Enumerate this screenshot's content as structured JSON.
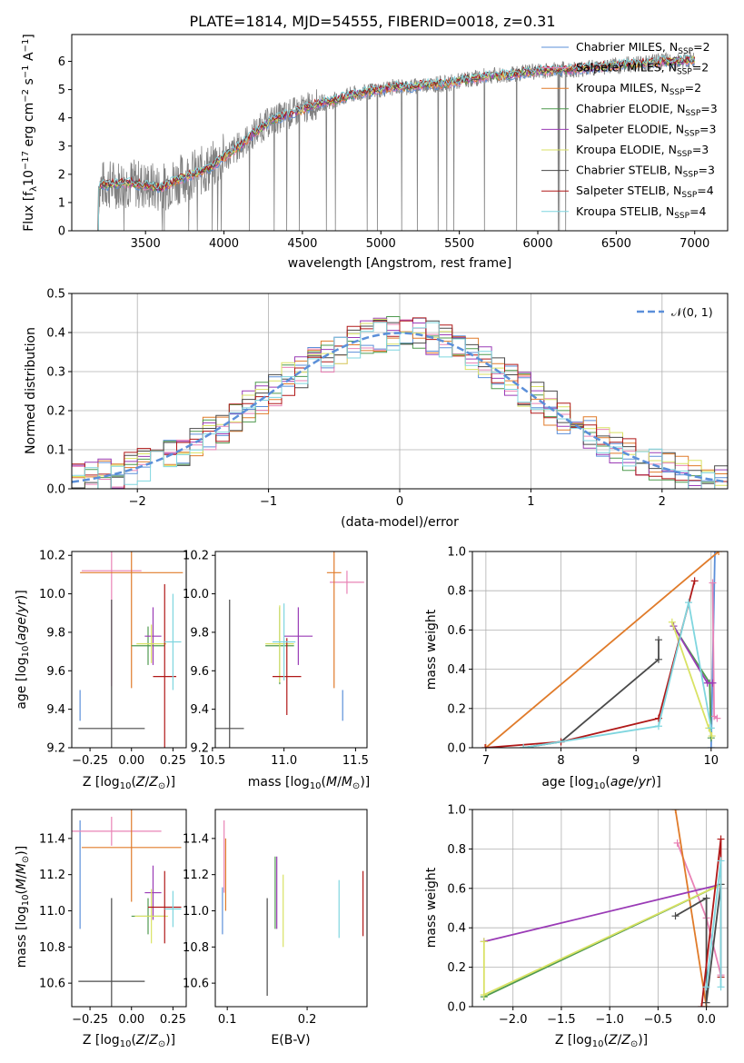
{
  "figure": {
    "title": "PLATE=1814, MJD=54555, FIBERID=0018, z=0.31"
  },
  "colors": {
    "c0": "#5b8fd9",
    "c1": "#e983b6",
    "c2": "#e07b2a",
    "c3": "#4f9a4f",
    "c4": "#9a3bb6",
    "c5": "#d9e264",
    "c6": "#4a4a4a",
    "c7": "#b01818",
    "c8": "#7fd6df",
    "data": "#808080",
    "gauss": "#5b8fd9"
  },
  "legend_labels": [
    "Chabrier MILES, N",
    "Salpeter MILES, N",
    "Kroupa MILES, N",
    "Chabrier ELODIE, N",
    "Salpeter ELODIE, N",
    "Kroupa ELODIE, N",
    "Chabrier STELIB, N",
    "Salpeter STELIB, N",
    "Kroupa STELIB, N"
  ],
  "legend_sub": "SSP",
  "legend_eq": [
    "=2",
    "=2",
    "=2",
    "=3",
    "=3",
    "=3",
    "=3",
    "=4",
    "=4"
  ],
  "chart_data": [
    {
      "id": "spectrum",
      "type": "line",
      "xlabel": "wavelength [Angstrom, rest frame]",
      "ylabel": "Flux [f",
      "xlim": [
        3030,
        7210
      ],
      "ylim": [
        0,
        6.95
      ],
      "xticks": [
        3500,
        4000,
        4500,
        5000,
        5500,
        6000,
        6500,
        7000
      ],
      "yticks": [
        0,
        1,
        2,
        3,
        4,
        5,
        6
      ],
      "grid": false,
      "legend": "top-right",
      "continuum_x": [
        3200,
        3300,
        3400,
        3500,
        3600,
        3700,
        3800,
        3900,
        4000,
        4100,
        4200,
        4300,
        4400,
        4500,
        4600,
        4700,
        4800,
        4900,
        5000,
        5100,
        5200,
        5300,
        5400,
        5500,
        5600,
        5700,
        5800,
        5900,
        6000,
        6100,
        6200,
        6300,
        6400,
        6500,
        6600,
        6700,
        6800,
        6900,
        7000
      ],
      "continuum_y": [
        1.6,
        1.65,
        1.7,
        1.6,
        1.5,
        1.8,
        2.0,
        2.2,
        2.6,
        3.0,
        3.5,
        3.9,
        4.1,
        4.3,
        4.5,
        4.6,
        4.8,
        4.9,
        5.0,
        5.1,
        5.1,
        5.2,
        5.2,
        5.3,
        5.4,
        5.5,
        5.5,
        5.6,
        5.65,
        5.7,
        5.7,
        5.75,
        5.8,
        5.85,
        5.9,
        5.95,
        6.0,
        6.0,
        6.05
      ]
    },
    {
      "id": "residuals",
      "type": "line",
      "xlabel": "(data-model)/error",
      "ylabel": "Normed distribution",
      "xlim": [
        -2.5,
        2.5
      ],
      "ylim": [
        0,
        0.5
      ],
      "xticks": [
        -2,
        -1,
        0,
        1,
        2
      ],
      "yticks": [
        0.0,
        0.1,
        0.2,
        0.3,
        0.4,
        0.5
      ],
      "grid": true,
      "legend_label": "𝒩(0, 1)",
      "bin_width": 0.1
    },
    {
      "id": "age-vs-Z",
      "type": "scatter",
      "xlabel": "Z [log",
      "ylabel": "age  [log",
      "xlim": [
        -0.36,
        0.33
      ],
      "ylim": [
        9.2,
        10.22
      ],
      "xticks": [
        -0.25,
        0.0,
        0.25
      ],
      "yticks": [
        9.2,
        9.4,
        9.6,
        9.8,
        10.0,
        10.2
      ],
      "points": [
        {
          "color": "c0",
          "x": -0.31,
          "y": 9.42,
          "xerr": 0.0,
          "yerr": 0.08
        },
        {
          "color": "c1",
          "x": -0.12,
          "y": 10.12,
          "xerr": 0.18,
          "yerr": 0.6
        },
        {
          "color": "c2",
          "x": 0.0,
          "y": 10.11,
          "xerr": 0.31,
          "yerr": 0.6
        },
        {
          "color": "c3",
          "x": 0.1,
          "y": 9.73,
          "xerr": 0.1,
          "yerr": 0.1
        },
        {
          "color": "c4",
          "x": 0.13,
          "y": 9.78,
          "xerr": 0.05,
          "yerr": 0.15
        },
        {
          "color": "c5",
          "x": 0.12,
          "y": 9.74,
          "xerr": 0.09,
          "yerr": 0.1
        },
        {
          "color": "c6",
          "x": -0.12,
          "y": 9.3,
          "xerr": 0.2,
          "yerr": 0.67
        },
        {
          "color": "c7",
          "x": 0.2,
          "y": 9.57,
          "xerr": 0.07,
          "yerr": 0.48
        },
        {
          "color": "c8",
          "x": 0.25,
          "y": 9.75,
          "xerr": 0.05,
          "yerr": 0.25
        }
      ]
    },
    {
      "id": "age-vs-mass",
      "type": "scatter",
      "xlabel": "mass [log",
      "ylabel": "",
      "xlim": [
        10.52,
        11.58
      ],
      "ylim": [
        9.2,
        10.22
      ],
      "xticks": [
        10.5,
        11.0,
        11.5
      ],
      "yticks": [
        9.2,
        9.4,
        9.6,
        9.8,
        10.0,
        10.2
      ],
      "points": [
        {
          "color": "c0",
          "x": 11.41,
          "y": 9.42,
          "xerr": 0.0,
          "yerr": 0.08
        },
        {
          "color": "c1",
          "x": 11.44,
          "y": 10.06,
          "xerr": 0.12,
          "yerr": 0.06
        },
        {
          "color": "c2",
          "x": 11.35,
          "y": 10.11,
          "xerr": 0.05,
          "yerr": 0.6
        },
        {
          "color": "c3",
          "x": 10.97,
          "y": 9.73,
          "xerr": 0.1,
          "yerr": 0.2
        },
        {
          "color": "c4",
          "x": 11.1,
          "y": 9.78,
          "xerr": 0.1,
          "yerr": 0.15
        },
        {
          "color": "c5",
          "x": 10.97,
          "y": 9.74,
          "xerr": 0.1,
          "yerr": 0.2
        },
        {
          "color": "c6",
          "x": 10.62,
          "y": 9.3,
          "xerr": 0.1,
          "yerr": 0.67
        },
        {
          "color": "c7",
          "x": 11.02,
          "y": 9.57,
          "xerr": 0.1,
          "yerr": 0.2
        },
        {
          "color": "c8",
          "x": 11.0,
          "y": 9.75,
          "xerr": 0.08,
          "yerr": 0.2
        }
      ]
    },
    {
      "id": "weight-vs-age",
      "type": "line",
      "xlabel": "age  [log",
      "ylabel": "mass weight",
      "xlim": [
        6.82,
        10.22
      ],
      "ylim": [
        0,
        1
      ],
      "xticks": [
        7,
        8,
        9,
        10
      ],
      "yticks": [
        0.0,
        0.2,
        0.4,
        0.6,
        0.8,
        1.0
      ],
      "grid": true,
      "series": [
        {
          "color": "c0",
          "x": [
            10.0,
            10.05
          ],
          "y": [
            0.0,
            1.0
          ]
        },
        {
          "color": "c1",
          "x": [
            10.02,
            10.04,
            10.08
          ],
          "y": [
            0.84,
            0.16,
            0.15
          ]
        },
        {
          "color": "c2",
          "x": [
            7.0,
            10.1
          ],
          "y": [
            0.0,
            1.0
          ]
        },
        {
          "color": "c3",
          "x": [
            9.5,
            9.98,
            10.0
          ],
          "y": [
            0.62,
            0.33,
            0.05
          ]
        },
        {
          "color": "c4",
          "x": [
            9.5,
            9.95,
            10.02
          ],
          "y": [
            0.62,
            0.33,
            0.33
          ]
        },
        {
          "color": "c5",
          "x": [
            9.48,
            9.97,
            10.01
          ],
          "y": [
            0.64,
            0.1,
            0.06
          ]
        },
        {
          "color": "c6",
          "x": [
            7.5,
            8.0,
            9.3,
            9.3
          ],
          "y": [
            0.0,
            0.03,
            0.45,
            0.55
          ]
        },
        {
          "color": "c7",
          "x": [
            6.99,
            8.0,
            9.3,
            9.78
          ],
          "y": [
            0.0,
            0.03,
            0.15,
            0.85
          ]
        },
        {
          "color": "c8",
          "x": [
            7.5,
            9.3,
            9.7,
            10.0
          ],
          "y": [
            0.0,
            0.11,
            0.74,
            0.1
          ]
        }
      ]
    },
    {
      "id": "mass-vs-Z",
      "type": "scatter",
      "xlabel": "Z [log",
      "ylabel": "mass [log",
      "xlim": [
        -0.36,
        0.33
      ],
      "ylim": [
        10.47,
        11.56
      ],
      "xticks": [
        -0.25,
        0.0,
        0.25
      ],
      "yticks": [
        10.6,
        10.8,
        11.0,
        11.2,
        11.4
      ],
      "points": [
        {
          "color": "c0",
          "x": -0.31,
          "y": 11.2,
          "xerr": 0.0,
          "yerr": 0.3
        },
        {
          "color": "c1",
          "x": -0.12,
          "y": 11.44,
          "xerr": 0.3,
          "yerr": 0.08
        },
        {
          "color": "c2",
          "x": 0.0,
          "y": 11.35,
          "xerr": 0.3,
          "yerr": 0.3
        },
        {
          "color": "c3",
          "x": 0.1,
          "y": 10.97,
          "xerr": 0.1,
          "yerr": 0.1
        },
        {
          "color": "c4",
          "x": 0.13,
          "y": 11.1,
          "xerr": 0.05,
          "yerr": 0.15
        },
        {
          "color": "c5",
          "x": 0.12,
          "y": 10.97,
          "xerr": 0.1,
          "yerr": 0.15
        },
        {
          "color": "c6",
          "x": -0.12,
          "y": 10.61,
          "xerr": 0.2,
          "yerr": 0.46
        },
        {
          "color": "c7",
          "x": 0.2,
          "y": 11.02,
          "xerr": 0.1,
          "yerr": 0.2
        },
        {
          "color": "c8",
          "x": 0.25,
          "y": 11.01,
          "xerr": 0.05,
          "yerr": 0.1
        }
      ]
    },
    {
      "id": "mass-vs-ebv",
      "type": "scatter",
      "xlabel": "E(B-V)",
      "ylabel": "",
      "xlim": [
        0.085,
        0.275
      ],
      "ylim": [
        10.47,
        11.56
      ],
      "xticks": [
        0.1,
        0.2
      ],
      "yticks": [
        10.6,
        10.8,
        11.0,
        11.2,
        11.4
      ],
      "points": [
        {
          "color": "c0",
          "x": 0.094,
          "y": 11.0,
          "xerr": 0,
          "yerr": 0.13
        },
        {
          "color": "c1",
          "x": 0.096,
          "y": 11.3,
          "xerr": 0,
          "yerr": 0.2
        },
        {
          "color": "c2",
          "x": 0.098,
          "y": 11.2,
          "xerr": 0,
          "yerr": 0.2
        },
        {
          "color": "c3",
          "x": 0.16,
          "y": 11.1,
          "xerr": 0,
          "yerr": 0.2
        },
        {
          "color": "c4",
          "x": 0.162,
          "y": 11.1,
          "xerr": 0,
          "yerr": 0.2
        },
        {
          "color": "c5",
          "x": 0.17,
          "y": 11.0,
          "xerr": 0,
          "yerr": 0.2
        },
        {
          "color": "c6",
          "x": 0.15,
          "y": 10.8,
          "xerr": 0,
          "yerr": 0.27
        },
        {
          "color": "c7",
          "x": 0.27,
          "y": 11.04,
          "xerr": 0,
          "yerr": 0.18
        },
        {
          "color": "c8",
          "x": 0.24,
          "y": 11.01,
          "xerr": 0,
          "yerr": 0.16
        }
      ]
    },
    {
      "id": "weight-vs-Z",
      "type": "line",
      "xlabel": "Z [log",
      "ylabel": "mass weight",
      "xlim": [
        -2.42,
        0.22
      ],
      "ylim": [
        0,
        1
      ],
      "xticks": [
        -2.0,
        -1.5,
        -1.0,
        -0.5,
        0.0
      ],
      "yticks": [
        0.0,
        0.2,
        0.4,
        0.6,
        0.8,
        1.0
      ],
      "grid": true,
      "series": [
        {
          "color": "c1",
          "x": [
            -0.3,
            0.0,
            0.15
          ],
          "y": [
            0.83,
            0.45,
            0.16
          ]
        },
        {
          "color": "c2",
          "x": [
            -0.32,
            0.0
          ],
          "y": [
            1.0,
            0.0
          ]
        },
        {
          "color": "c3",
          "x": [
            -2.3,
            0.15
          ],
          "y": [
            0.05,
            0.62
          ]
        },
        {
          "color": "c4",
          "x": [
            -2.3,
            0.15
          ],
          "y": [
            0.33,
            0.62
          ]
        },
        {
          "color": "c5",
          "x": [
            -2.3,
            -2.3,
            0.15
          ],
          "y": [
            0.33,
            0.06,
            0.62
          ]
        },
        {
          "color": "c6",
          "x": [
            -0.32,
            0.0,
            0.0,
            0.15
          ],
          "y": [
            0.46,
            0.55,
            0.02,
            0.62
          ]
        },
        {
          "color": "c7",
          "x": [
            -0.05,
            0.15,
            0.15
          ],
          "y": [
            0.0,
            0.85,
            0.15
          ]
        },
        {
          "color": "c8",
          "x": [
            0.0,
            0.15,
            0.15
          ],
          "y": [
            0.1,
            0.74,
            0.1
          ]
        }
      ]
    }
  ]
}
